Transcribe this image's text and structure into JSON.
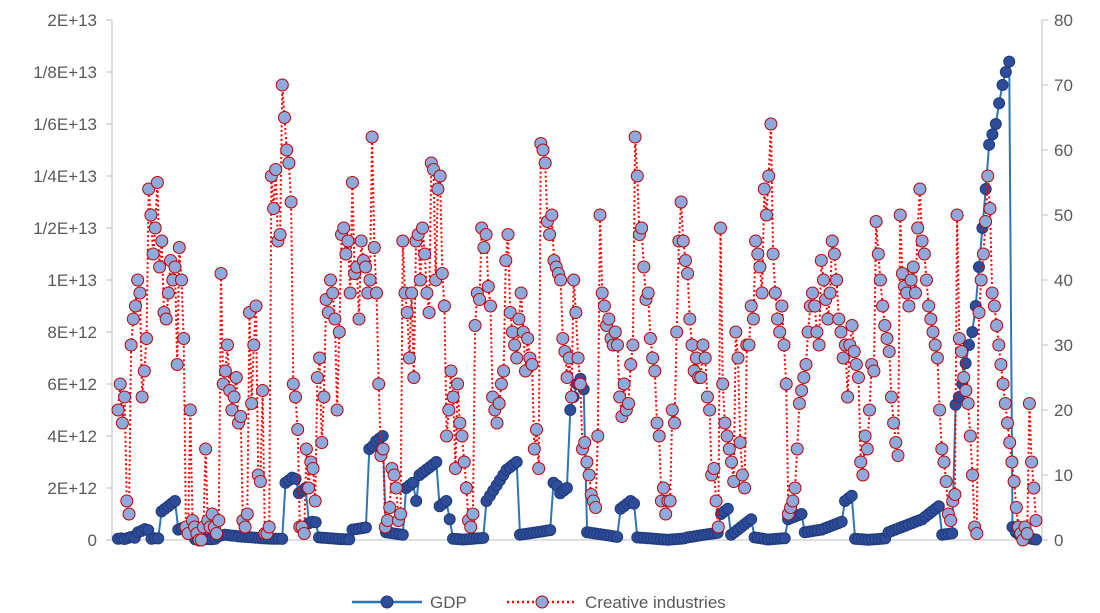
{
  "chart_data": {
    "type": "line",
    "title": "",
    "xlabel": "",
    "ylabel_left": "",
    "ylabel_right": "",
    "left_axis": {
      "min": 0,
      "max": 20000000000000,
      "step": 2000000000000,
      "tick_labels": [
        "0",
        "2E+12",
        "4E+12",
        "6E+12",
        "8E+12",
        "1E+13",
        "1/2E+13",
        "1/4E+13",
        "1/6E+13",
        "1/8E+13",
        "2E+13"
      ]
    },
    "right_axis": {
      "min": 0,
      "max": 80,
      "step": 10,
      "tick_labels": [
        "0",
        "10",
        "20",
        "30",
        "40",
        "50",
        "60",
        "70",
        "80"
      ]
    },
    "grid": false,
    "legend_position": "bottom",
    "colors": {
      "gdp_line": "#2E75B6",
      "gdp_marker_fill": "#2F4C9B",
      "gdp_marker_edge": "#1F3B7A",
      "creative_line": "#FF0000",
      "creative_marker_fill": "#8EA9DB",
      "creative_marker_edge": "#C00000",
      "axis": "#BFBFBF",
      "text": "#595959"
    },
    "series": [
      {
        "name": "GDP",
        "axis": "left",
        "style": "solid-line-filled-circles",
        "description_segments": "Series of countries, each with consecutive yearly values; mostly near zero with several large spikes",
        "values": [
          50000000000,
          60000000000,
          40000000000,
          80000000000,
          120000000000,
          90000000000,
          300000000000,
          350000000000,
          420000000000,
          380000000000,
          50000000000,
          70000000000,
          60000000000,
          1100000000000,
          1200000000000,
          1300000000000,
          1400000000000,
          1500000000000,
          400000000000,
          450000000000,
          500000000000,
          550000000000,
          600000000000,
          30000000000,
          20000000000,
          25000000000,
          40000000000,
          35000000000,
          30000000000,
          45000000000,
          150000000000,
          180000000000,
          200000000000,
          190000000000,
          170000000000,
          160000000000,
          140000000000,
          130000000000,
          120000000000,
          110000000000,
          100000000000,
          90000000000,
          80000000000,
          70000000000,
          60000000000,
          55000000000,
          50000000000,
          48000000000,
          46000000000,
          44000000000,
          2200000000000,
          2300000000000,
          2400000000000,
          2350000000000,
          1800000000000,
          1900000000000,
          2000000000000,
          650000000000,
          700000000000,
          680000000000,
          100000000000,
          90000000000,
          80000000000,
          70000000000,
          60000000000,
          50000000000,
          40000000000,
          35000000000,
          30000000000,
          25000000000,
          400000000000,
          420000000000,
          440000000000,
          460000000000,
          480000000000,
          3500000000000,
          3600000000000,
          3800000000000,
          3900000000000,
          4000000000000,
          300000000000,
          280000000000,
          260000000000,
          240000000000,
          220000000000,
          200000000000,
          2000000000000,
          2100000000000,
          2200000000000,
          1500000000000,
          2500000000000,
          2600000000000,
          2700000000000,
          2800000000000,
          2900000000000,
          3000000000000,
          1300000000000,
          1400000000000,
          1500000000000,
          800000000000,
          50000000000,
          40000000000,
          30000000000,
          20000000000,
          30000000000,
          40000000000,
          50000000000,
          60000000000,
          70000000000,
          80000000000,
          1500000000000,
          1700000000000,
          1900000000000,
          2100000000000,
          2300000000000,
          2500000000000,
          2700000000000,
          2800000000000,
          2900000000000,
          3000000000000,
          200000000000,
          220000000000,
          240000000000,
          260000000000,
          280000000000,
          300000000000,
          320000000000,
          340000000000,
          360000000000,
          380000000000,
          2200000000000,
          2100000000000,
          1800000000000,
          1900000000000,
          2000000000000,
          5000000000000,
          5500000000000,
          6000000000000,
          6200000000000,
          5800000000000,
          300000000000,
          280000000000,
          260000000000,
          240000000000,
          220000000000,
          200000000000,
          180000000000,
          160000000000,
          140000000000,
          120000000000,
          1200000000000,
          1300000000000,
          1400000000000,
          1500000000000,
          1400000000000,
          100000000000,
          90000000000,
          80000000000,
          70000000000,
          60000000000,
          50000000000,
          40000000000,
          30000000000,
          20000000000,
          10000000000,
          20000000000,
          30000000000,
          40000000000,
          50000000000,
          60000000000,
          100000000000,
          120000000000,
          140000000000,
          160000000000,
          180000000000,
          200000000000,
          220000000000,
          240000000000,
          260000000000,
          280000000000,
          1000000000000,
          1100000000000,
          1200000000000,
          200000000000,
          300000000000,
          400000000000,
          500000000000,
          600000000000,
          700000000000,
          800000000000,
          100000000000,
          80000000000,
          60000000000,
          40000000000,
          20000000000,
          30000000000,
          40000000000,
          50000000000,
          60000000000,
          70000000000,
          800000000000,
          850000000000,
          900000000000,
          950000000000,
          1000000000000,
          300000000000,
          320000000000,
          340000000000,
          360000000000,
          380000000000,
          400000000000,
          450000000000,
          500000000000,
          550000000000,
          600000000000,
          650000000000,
          700000000000,
          1500000000000,
          1600000000000,
          1700000000000,
          50000000000,
          40000000000,
          30000000000,
          20000000000,
          10000000000,
          20000000000,
          30000000000,
          40000000000,
          50000000000,
          60000000000,
          300000000000,
          350000000000,
          400000000000,
          450000000000,
          500000000000,
          550000000000,
          600000000000,
          650000000000,
          700000000000,
          750000000000,
          800000000000,
          900000000000,
          1000000000000,
          1100000000000,
          1200000000000,
          1300000000000,
          200000000000,
          220000000000,
          240000000000,
          260000000000,
          5200000000000,
          5500000000000,
          6000000000000,
          6800000000000,
          7500000000000,
          8000000000000,
          9000000000000,
          10500000000000,
          12000000000000,
          13500000000000,
          15200000000000,
          15600000000000,
          16000000000000,
          16800000000000,
          17500000000000,
          18000000000000,
          18400000000000,
          500000000000,
          300000000000,
          200000000000,
          100000000000,
          80000000000,
          60000000000,
          40000000000,
          20000000000
        ]
      },
      {
        "name": "Creative industries",
        "axis": "right",
        "style": "dotted-line-open-circles",
        "values": [
          20,
          24,
          18,
          22,
          6,
          4,
          30,
          34,
          36,
          40,
          38,
          22,
          26,
          31,
          54,
          50,
          44,
          48,
          55,
          42,
          46,
          35,
          34,
          38,
          43,
          40,
          42,
          27,
          45,
          40,
          31,
          2,
          1,
          20,
          3,
          2,
          1,
          0,
          0,
          2,
          14,
          3,
          2,
          4,
          2,
          1,
          3,
          41,
          24,
          26,
          30,
          23,
          20,
          22,
          25,
          18,
          19,
          3,
          2,
          4,
          35,
          21,
          30,
          36,
          10,
          9,
          23,
          1,
          1,
          2,
          56,
          51,
          57,
          46,
          47,
          70,
          65,
          60,
          58,
          52,
          24,
          22,
          17,
          2,
          2,
          1,
          14,
          8,
          12,
          11,
          6,
          25,
          28,
          15,
          22,
          37,
          35,
          40,
          38,
          34,
          20,
          32,
          47,
          48,
          44,
          46,
          38,
          55,
          41,
          42,
          34,
          46,
          43,
          42,
          38,
          40,
          62,
          45,
          38,
          24,
          13,
          14,
          2,
          3,
          5,
          11,
          10,
          8,
          3,
          4,
          46,
          38,
          35,
          28,
          38,
          25,
          46,
          47,
          40,
          48,
          44,
          38,
          35,
          58,
          57,
          40,
          54,
          56,
          41,
          36,
          16,
          20,
          26,
          22,
          11,
          24,
          18,
          16,
          12,
          8,
          3,
          2,
          4,
          33,
          38,
          37,
          48,
          45,
          47,
          39,
          36,
          22,
          20,
          18,
          21,
          24,
          26,
          43,
          47,
          35,
          32,
          30,
          28,
          34,
          38,
          32,
          26,
          31,
          28,
          27,
          14,
          17,
          11,
          61,
          60,
          58,
          49,
          47,
          50,
          43,
          42,
          41,
          40,
          31,
          29,
          25,
          28,
          22,
          40,
          35,
          28,
          24,
          14,
          15,
          12,
          10,
          7,
          6,
          5,
          16,
          50,
          38,
          36,
          33,
          34,
          31,
          30,
          32,
          30,
          22,
          19,
          24,
          20,
          21,
          27,
          30,
          62,
          56,
          47,
          48,
          42,
          37,
          38,
          31,
          28,
          26,
          18,
          16,
          6,
          8,
          4,
          6,
          6,
          20,
          18,
          32,
          46,
          52,
          46,
          43,
          41,
          34,
          30,
          26,
          28,
          25,
          25,
          30,
          28,
          22,
          20,
          10,
          11,
          6,
          2,
          48,
          24,
          18,
          16,
          14,
          12,
          9,
          32,
          28,
          15,
          10,
          8,
          30,
          30,
          36,
          34,
          46,
          44,
          42,
          38,
          54,
          50,
          56,
          64,
          44,
          38,
          34,
          32,
          36,
          30,
          24,
          4,
          5,
          6,
          8,
          14,
          21,
          23,
          25,
          27,
          32,
          36,
          38,
          36,
          32,
          30,
          43,
          40,
          37,
          34,
          38,
          46,
          44,
          40,
          34,
          32,
          28,
          30,
          22,
          30,
          33,
          29,
          27,
          25,
          12,
          10,
          16,
          14,
          20,
          27,
          26,
          49,
          44,
          40,
          36,
          33,
          31,
          29,
          22,
          18,
          15,
          13,
          50,
          41,
          39,
          38,
          36,
          40,
          42,
          38,
          48,
          54,
          46,
          44,
          40,
          36,
          34,
          32,
          30,
          28,
          20,
          14,
          12,
          9,
          4,
          3,
          6,
          7,
          50,
          31,
          29,
          25,
          23,
          21,
          16,
          10,
          2,
          1,
          35,
          40,
          44,
          49,
          56,
          51,
          38,
          36,
          33,
          30,
          27,
          24,
          21,
          18,
          15,
          12,
          9,
          5,
          2,
          1,
          0,
          2,
          1,
          21,
          12,
          8,
          3
        ]
      }
    ]
  },
  "legend": {
    "items": [
      {
        "name": "GDP"
      },
      {
        "name": "Creative industries"
      }
    ]
  }
}
